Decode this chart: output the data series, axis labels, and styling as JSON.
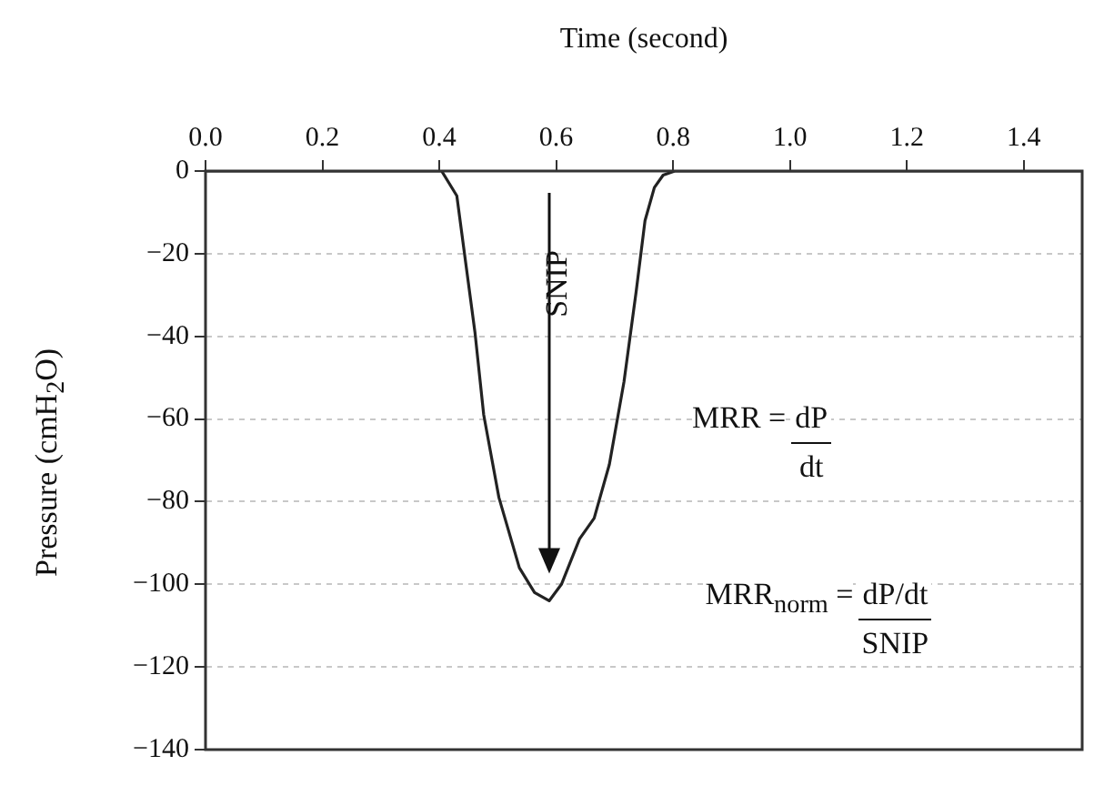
{
  "chart_data": {
    "type": "line",
    "xlabel": "Time (second)",
    "ylabel": "Pressure (cmH$_{2}$O)",
    "series": [
      {
        "color": "#222222",
        "x": [
          0,
          0.404,
          0.43,
          0.445,
          0.461,
          0.476,
          0.502,
          0.537,
          0.563,
          0.588,
          0.609,
          0.64,
          0.665,
          0.691,
          0.716,
          0.737,
          0.752,
          0.768,
          0.783,
          0.803,
          1.5
        ],
        "values": [
          0,
          0,
          -6,
          -22,
          -39,
          -59,
          -79,
          -96,
          -102,
          -104,
          -100,
          -89,
          -84,
          -71,
          -51,
          -29,
          -12,
          -4,
          -1,
          0,
          0
        ]
      }
    ],
    "xlim": [
      0,
      1.5
    ],
    "xticks": [
      {
        "value": 0,
        "label": "0.0"
      },
      {
        "value": 0.2,
        "label": "0.2"
      },
      {
        "value": 0.4,
        "label": "0.4"
      },
      {
        "value": 0.6,
        "label": "0.6"
      },
      {
        "value": 0.8,
        "label": "0.8"
      },
      {
        "value": 1,
        "label": "1.0"
      },
      {
        "value": 1.2,
        "label": "1.2"
      },
      {
        "value": 1.4,
        "label": "1.4"
      }
    ],
    "ylim": [
      -140,
      0
    ],
    "yticks": [
      0,
      {
        "value": -20,
        "label": "−20"
      },
      {
        "value": -40,
        "label": "−40"
      },
      {
        "value": -60,
        "label": "−60"
      },
      {
        "value": -80,
        "label": "−80"
      },
      {
        "value": -100,
        "label": "−100"
      },
      {
        "value": -120,
        "label": "−120"
      },
      {
        "value": -140,
        "label": "−140"
      }
    ],
    "grid": "y",
    "annotations": [
      "SNIP",
      "MRR =",
      "dP",
      "dt",
      "MRR$_{norm}$ =",
      "dP/dt",
      "SNIP"
    ]
  }
}
